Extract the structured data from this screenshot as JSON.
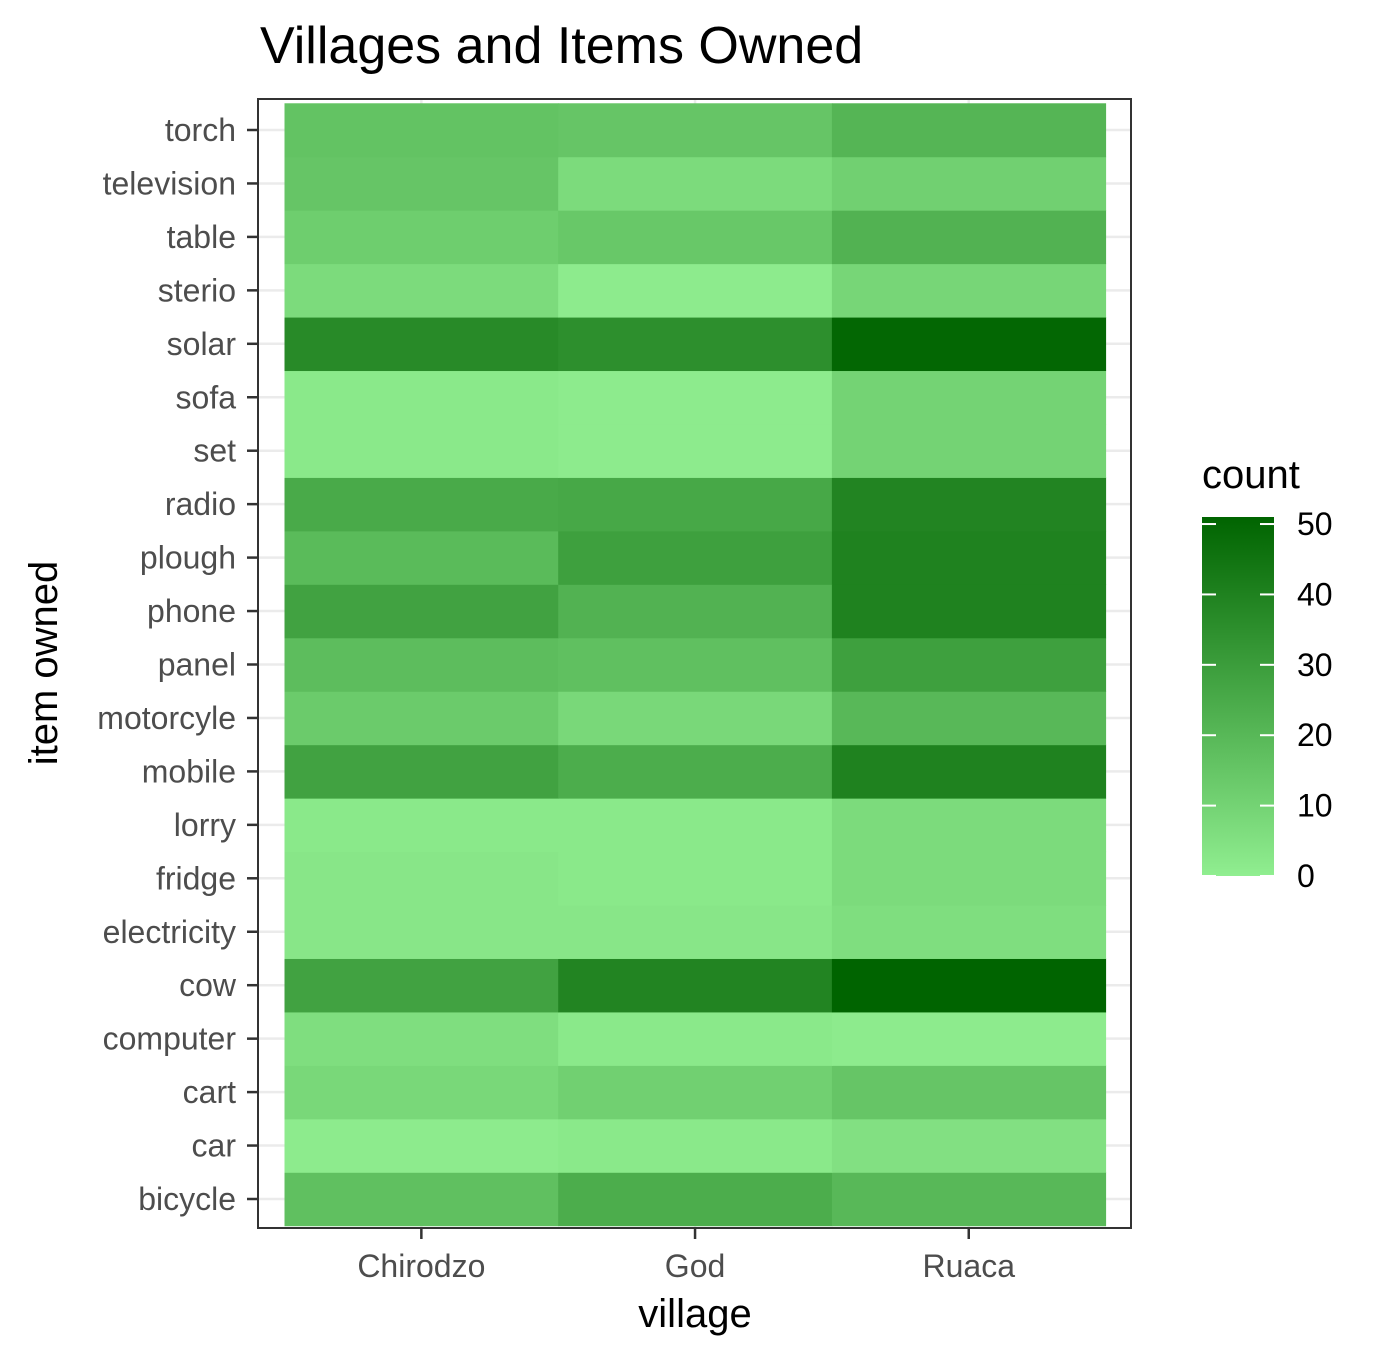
{
  "chart_data": {
    "type": "heatmap",
    "title": "Villages and Items Owned",
    "xlabel": "village",
    "ylabel": "item owned",
    "x": [
      "Chirodzo",
      "God",
      "Ruaca"
    ],
    "y": [
      "bicycle",
      "car",
      "cart",
      "computer",
      "cow",
      "electricity",
      "fridge",
      "lorry",
      "mobile",
      "motorcyle",
      "panel",
      "phone",
      "plough",
      "radio",
      "set",
      "sofa",
      "solar",
      "sterio",
      "table",
      "television",
      "torch"
    ],
    "values": [
      [
        17,
        24,
        20
      ],
      [
        1,
        2,
        5
      ],
      [
        8,
        11,
        15
      ],
      [
        6,
        2,
        1
      ],
      [
        28,
        39,
        51
      ],
      [
        3,
        3,
        6
      ],
      [
        3,
        2,
        7
      ],
      [
        2,
        2,
        7
      ],
      [
        28,
        24,
        40
      ],
      [
        13,
        8,
        20
      ],
      [
        18,
        17,
        29
      ],
      [
        28,
        22,
        40
      ],
      [
        19,
        29,
        40
      ],
      [
        25,
        26,
        39
      ],
      [
        2,
        1,
        10
      ],
      [
        2,
        1,
        10
      ],
      [
        37,
        35,
        50
      ],
      [
        7,
        1,
        9
      ],
      [
        12,
        14,
        22
      ],
      [
        15,
        7,
        11
      ],
      [
        16,
        15,
        21
      ]
    ],
    "legend": {
      "title": "count",
      "ticks": [
        0,
        10,
        20,
        30,
        40,
        50
      ],
      "range": [
        0,
        51
      ],
      "low_color": "#90EE90",
      "high_color": "#006400",
      "placement": "right"
    },
    "grid": true,
    "theme": "bw"
  }
}
